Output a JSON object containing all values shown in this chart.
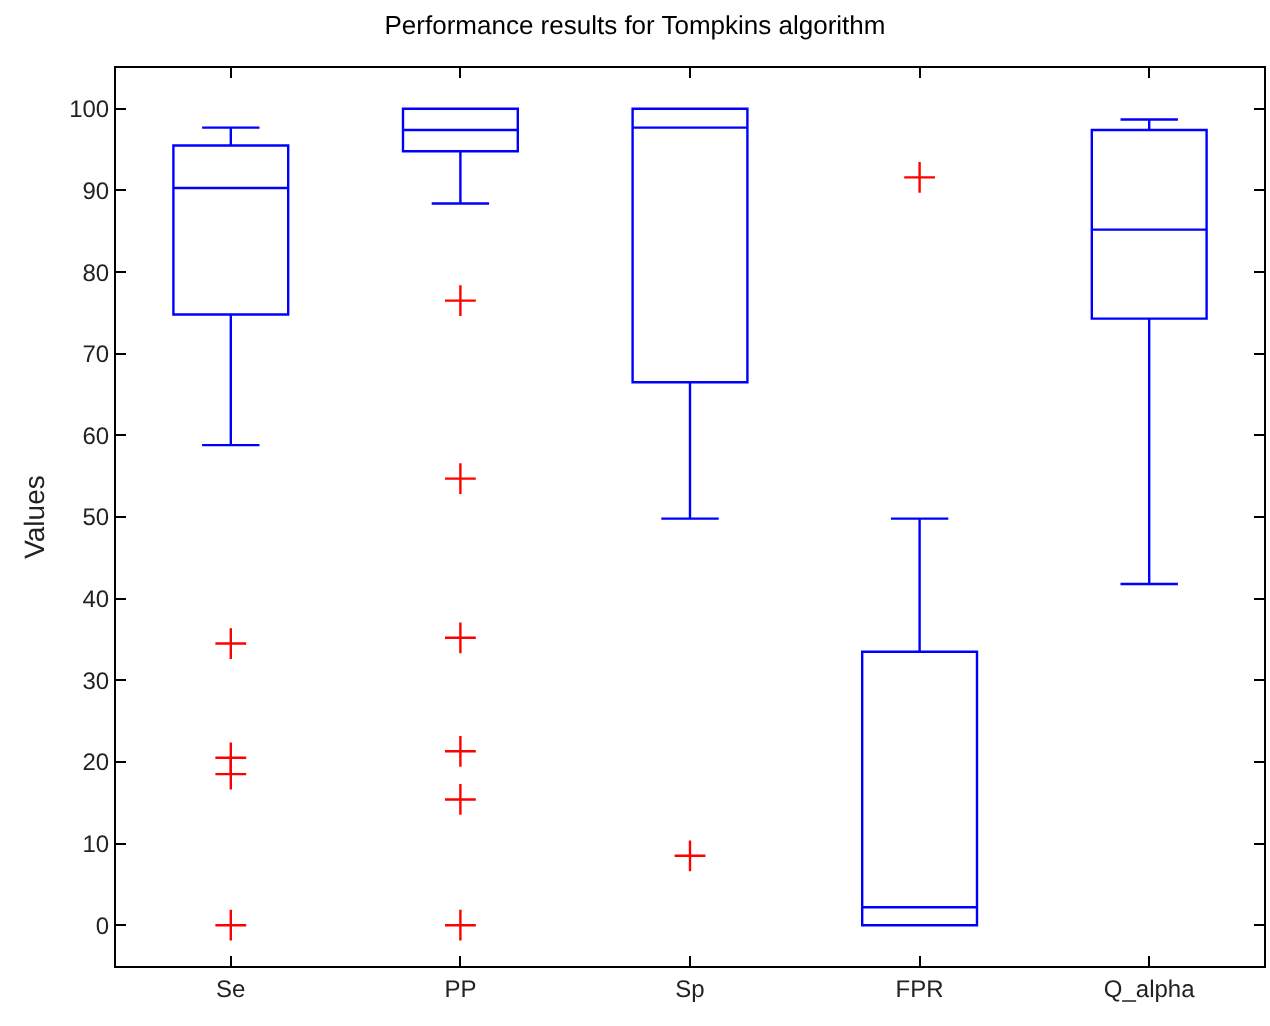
{
  "chart_data": {
    "type": "box",
    "title": "Performance results for Tompkins algorithm",
    "ylabel": "Values",
    "categories": [
      "Se",
      "PP",
      "Sp",
      "FPR",
      "Q_alpha"
    ],
    "ylim": [
      -5,
      105
    ],
    "yticks": [
      0,
      10,
      20,
      30,
      40,
      50,
      60,
      70,
      80,
      90,
      100
    ],
    "grid": false,
    "marker": "cross",
    "series": [
      {
        "color": "#0000ff",
        "boxes": [
          {
            "low": 58.8,
            "q1": 74.8,
            "median": 90.3,
            "q3": 95.5,
            "high": 97.7,
            "outliers": [
              34.5,
              20.5,
              18.5,
              0
            ]
          },
          {
            "low": 88.4,
            "q1": 94.8,
            "median": 97.4,
            "q3": 100,
            "high": 100,
            "outliers": [
              76.5,
              54.7,
              35.2,
              21.3,
              15.4,
              0
            ]
          },
          {
            "low": 49.8,
            "q1": 66.5,
            "median": 97.7,
            "q3": 100,
            "high": 100,
            "outliers": [
              8.5
            ]
          },
          {
            "low": 0,
            "q1": 0,
            "median": 2.2,
            "q3": 33.5,
            "high": 49.8,
            "outliers": [
              91.6
            ]
          },
          {
            "low": 41.8,
            "q1": 74.3,
            "median": 85.2,
            "q3": 97.4,
            "high": 98.7
          }
        ]
      }
    ]
  }
}
